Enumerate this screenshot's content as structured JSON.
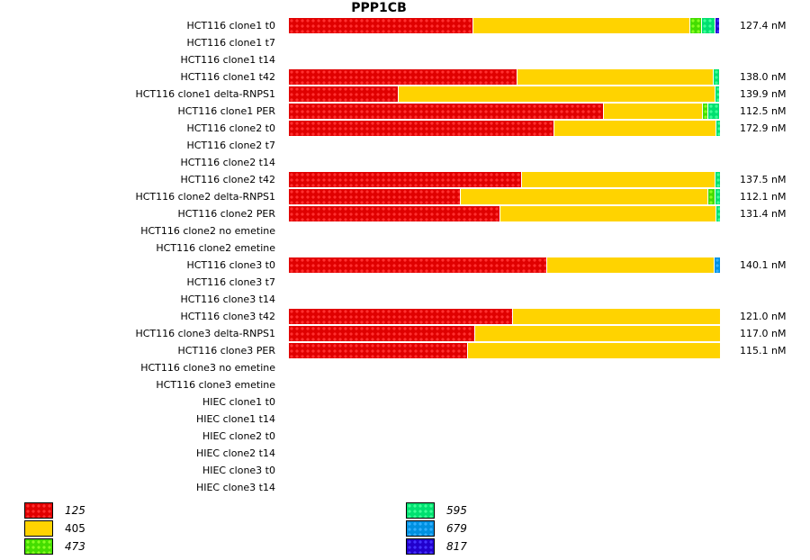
{
  "chart_data": {
    "type": "bar",
    "orientation": "horizontal",
    "stacked": "normalized",
    "title": "PPP1CB",
    "xlabel": "",
    "ylabel": "",
    "grid": false,
    "legend_position": "bottom",
    "legend": [
      {
        "key": "125",
        "color": "#e00000",
        "italic": true
      },
      {
        "key": "405",
        "color": "#ffd300",
        "italic": false
      },
      {
        "key": "473",
        "color": "#44dd00",
        "italic": true
      },
      {
        "key": "595",
        "color": "#00e070",
        "italic": true
      },
      {
        "key": "679",
        "color": "#0090e0",
        "italic": true
      },
      {
        "key": "817",
        "color": "#2200cc",
        "italic": true
      }
    ],
    "rows": [
      {
        "label": "HCT116 clone1 t0",
        "total": "127.4 nM",
        "segments": {
          "125": 0.428,
          "405": 0.503,
          "473": 0.027,
          "595": 0.031,
          "817": 0.011
        }
      },
      {
        "label": "HCT116 clone1 t7",
        "total": "",
        "segments": {}
      },
      {
        "label": "HCT116 clone1 t14",
        "total": "",
        "segments": {}
      },
      {
        "label": "HCT116 clone1 t42",
        "total": "138.0 nM",
        "segments": {
          "125": 0.53,
          "405": 0.455,
          "595": 0.015
        }
      },
      {
        "label": "HCT116 clone1 delta-RNPS1",
        "total": "139.9 nM",
        "segments": {
          "125": 0.255,
          "405": 0.734,
          "595": 0.011
        }
      },
      {
        "label": "HCT116 clone1 PER",
        "total": "112.5 nM",
        "segments": {
          "125": 0.73,
          "405": 0.229,
          "473": 0.013,
          "595": 0.028
        }
      },
      {
        "label": "HCT116 clone2 t0",
        "total": "172.9 nM",
        "segments": {
          "125": 0.615,
          "405": 0.374,
          "595": 0.011
        }
      },
      {
        "label": "HCT116 clone2 t7",
        "total": "",
        "segments": {}
      },
      {
        "label": "HCT116 clone2 t14",
        "total": "",
        "segments": {}
      },
      {
        "label": "HCT116 clone2 t42",
        "total": "137.5 nM",
        "segments": {
          "125": 0.54,
          "405": 0.447,
          "595": 0.013
        }
      },
      {
        "label": "HCT116 clone2 delta-RNPS1",
        "total": "112.1 nM",
        "segments": {
          "125": 0.398,
          "405": 0.573,
          "473": 0.017,
          "595": 0.012
        }
      },
      {
        "label": "HCT116 clone2 PER",
        "total": "131.4 nM",
        "segments": {
          "125": 0.49,
          "405": 0.499,
          "595": 0.011
        }
      },
      {
        "label": "HCT116 clone2 no emetine",
        "total": "",
        "segments": {}
      },
      {
        "label": "HCT116 clone2 emetine",
        "total": "",
        "segments": {}
      },
      {
        "label": "HCT116 clone3 t0",
        "total": "140.1 nM",
        "segments": {
          "125": 0.598,
          "405": 0.387,
          "679": 0.015
        }
      },
      {
        "label": "HCT116 clone3 t7",
        "total": "",
        "segments": {}
      },
      {
        "label": "HCT116 clone3 t14",
        "total": "",
        "segments": {}
      },
      {
        "label": "HCT116 clone3 t42",
        "total": "121.0 nM",
        "segments": {
          "125": 0.518,
          "405": 0.482
        }
      },
      {
        "label": "HCT116 clone3 delta-RNPS1",
        "total": "117.0 nM",
        "segments": {
          "125": 0.432,
          "405": 0.568
        }
      },
      {
        "label": "HCT116 clone3 PER",
        "total": "115.1 nM",
        "segments": {
          "125": 0.415,
          "405": 0.585
        }
      },
      {
        "label": "HCT116 clone3 no emetine",
        "total": "",
        "segments": {}
      },
      {
        "label": "HCT116 clone3 emetine",
        "total": "",
        "segments": {}
      },
      {
        "label": "HIEC clone1 t0",
        "total": "",
        "segments": {}
      },
      {
        "label": "HIEC clone1 t14",
        "total": "",
        "segments": {}
      },
      {
        "label": "HIEC clone2 t0",
        "total": "",
        "segments": {}
      },
      {
        "label": "HIEC clone2 t14",
        "total": "",
        "segments": {}
      },
      {
        "label": "HIEC clone3 t0",
        "total": "",
        "segments": {}
      },
      {
        "label": "HIEC clone3 t14",
        "total": "",
        "segments": {}
      }
    ]
  }
}
